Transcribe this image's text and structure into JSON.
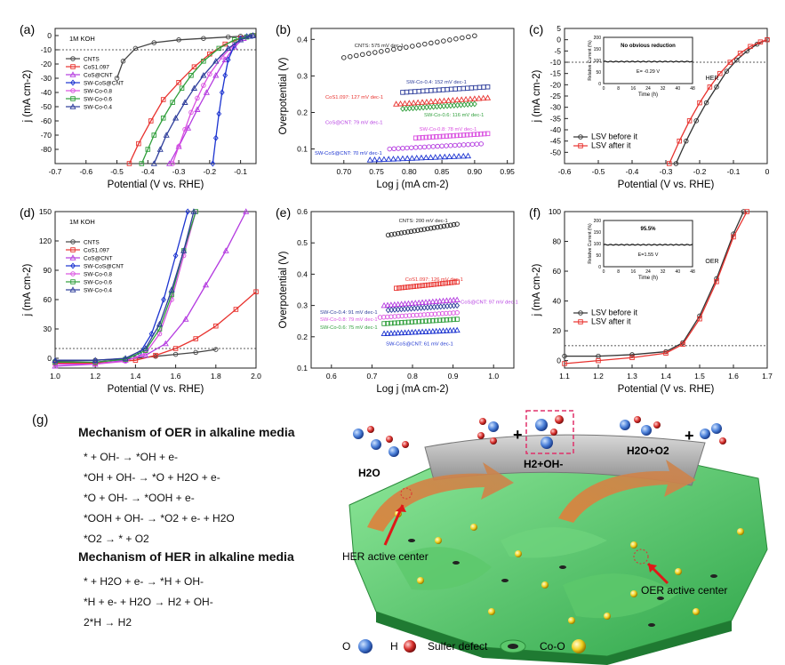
{
  "chart_data": [
    {
      "id": "a",
      "type": "line",
      "letter": "(a)",
      "annotation": "1M KOH",
      "xlabel": "Potential (V vs. RHE)",
      "ylabel": "j (mA cm-2)",
      "xlim": [
        -0.7,
        -0.05
      ],
      "ylim": [
        -90,
        5
      ],
      "xticks": [
        -0.7,
        -0.6,
        -0.5,
        -0.4,
        -0.3,
        -0.2,
        -0.1
      ],
      "yticks": [
        -80,
        -70,
        -60,
        -50,
        -40,
        -30,
        -20,
        -10,
        0
      ],
      "ref_line": -10,
      "legend": [
        "CNTS",
        "CoS1.097",
        "CoS@CNT",
        "SW-CoS@CNT",
        "SW-Co-0.8",
        "SW-Co-0.6",
        "SW-Co-0.4"
      ],
      "series": [
        {
          "name": "CNTS",
          "color": "#444444",
          "x": [
            -0.5,
            -0.48,
            -0.44,
            -0.38,
            -0.3,
            -0.22,
            -0.14,
            -0.1,
            -0.06
          ],
          "y": [
            -30,
            -18,
            -9,
            -5,
            -3,
            -2,
            -1,
            -0.5,
            0
          ]
        },
        {
          "name": "CoS1.097",
          "color": "#e8322e",
          "x": [
            -0.46,
            -0.43,
            -0.39,
            -0.35,
            -0.3,
            -0.25,
            -0.2,
            -0.15,
            -0.1,
            -0.06
          ],
          "y": [
            -90,
            -76,
            -60,
            -45,
            -33,
            -22,
            -13,
            -6,
            -2,
            0
          ]
        },
        {
          "name": "CoS@CNT",
          "color": "#b43be0",
          "x": [
            -0.33,
            -0.3,
            -0.27,
            -0.24,
            -0.21,
            -0.18,
            -0.15,
            -0.12,
            -0.09,
            -0.06
          ],
          "y": [
            -90,
            -78,
            -65,
            -52,
            -40,
            -28,
            -17,
            -8,
            -2,
            0
          ]
        },
        {
          "name": "SW-CoS@CNT",
          "color": "#1b33d0",
          "x": [
            -0.19,
            -0.18,
            -0.17,
            -0.16,
            -0.15,
            -0.14,
            -0.12,
            -0.1,
            -0.08,
            -0.06
          ],
          "y": [
            -90,
            -72,
            -55,
            -40,
            -28,
            -17,
            -7,
            -2,
            -0.5,
            0
          ]
        },
        {
          "name": "SW-Co-0.8",
          "color": "#d94fe0",
          "x": [
            -0.32,
            -0.3,
            -0.28,
            -0.26,
            -0.24,
            -0.22,
            -0.2,
            -0.16,
            -0.12,
            -0.08,
            -0.06
          ],
          "y": [
            -90,
            -78,
            -66,
            -54,
            -44,
            -35,
            -27,
            -15,
            -6,
            -1,
            0
          ]
        },
        {
          "name": "SW-Co-0.6",
          "color": "#2e9e3a",
          "x": [
            -0.42,
            -0.4,
            -0.38,
            -0.35,
            -0.32,
            -0.29,
            -0.26,
            -0.22,
            -0.17,
            -0.12,
            -0.08,
            -0.06
          ],
          "y": [
            -90,
            -80,
            -70,
            -58,
            -47,
            -37,
            -28,
            -18,
            -9,
            -3,
            -1,
            0
          ]
        },
        {
          "name": "SW-Co-0.4",
          "color": "#2c3c9a",
          "x": [
            -0.38,
            -0.36,
            -0.34,
            -0.31,
            -0.28,
            -0.25,
            -0.22,
            -0.18,
            -0.14,
            -0.1,
            -0.07,
            -0.06
          ],
          "y": [
            -90,
            -80,
            -70,
            -58,
            -47,
            -37,
            -28,
            -18,
            -9,
            -3,
            -0.5,
            0
          ]
        }
      ]
    },
    {
      "id": "b",
      "type": "scatter",
      "letter": "(b)",
      "xlabel": "Log j (mA cm-2)",
      "ylabel": "Overpotential (V)",
      "xlim": [
        0.65,
        0.96
      ],
      "ylim": [
        0.06,
        0.43
      ],
      "xticks": [
        0.7,
        0.75,
        0.8,
        0.85,
        0.9,
        0.95
      ],
      "yticks": [
        0.1,
        0.2,
        0.3,
        0.4
      ],
      "series": [
        {
          "name": "CNTS",
          "color": "#222222",
          "label": "CNTS: 575 mV dec-1",
          "x0": 0.7,
          "x1": 0.9,
          "y0": 0.35,
          "y1": 0.41
        },
        {
          "name": "SW-Co-0.4",
          "color": "#2c3c9a",
          "label": "SW-Co-0.4: 152 mV dec-1",
          "x0": 0.79,
          "x1": 0.92,
          "y0": 0.255,
          "y1": 0.27
        },
        {
          "name": "CoS1.097",
          "color": "#e8322e",
          "label": "CoS1.097: 127 mV dec-1",
          "x0": 0.78,
          "x1": 0.92,
          "y0": 0.223,
          "y1": 0.24
        },
        {
          "name": "SW-Co-0.6",
          "color": "#2e9e3a",
          "label": "SW-Co-0.6: 116 mV dec-1",
          "x0": 0.79,
          "x1": 0.9,
          "y0": 0.21,
          "y1": 0.223
        },
        {
          "name": "CoS@CNT",
          "color": "#b43be0",
          "label": "CoS@CNT: 79 mV dec-1",
          "x0": 0.77,
          "x1": 0.91,
          "y0": 0.1,
          "y1": 0.114
        },
        {
          "name": "SW-Co-0.8",
          "color": "#d94fe0",
          "label": "SW-Co-0.8: 78 mV dec-1",
          "x0": 0.81,
          "x1": 0.92,
          "y0": 0.13,
          "y1": 0.142
        },
        {
          "name": "SW-CoS@CNT",
          "color": "#1b33d0",
          "label": "SW-CoS@CNT: 70 mV dec-1",
          "x0": 0.74,
          "x1": 0.89,
          "y0": 0.07,
          "y1": 0.081
        }
      ]
    },
    {
      "id": "c",
      "type": "line",
      "letter": "(c)",
      "xlabel": "Potential (V vs. RHE)",
      "ylabel": "j (mA cm-2)",
      "xlim": [
        -0.6,
        0.0
      ],
      "ylim": [
        -55,
        5
      ],
      "xticks": [
        -0.6,
        -0.5,
        -0.4,
        -0.3,
        -0.2,
        -0.1,
        0.0
      ],
      "yticks": [
        -50,
        -45,
        -40,
        -35,
        -30,
        -25,
        -20,
        -15,
        -10,
        -5,
        0,
        5
      ],
      "ref_line": -10,
      "legend": [
        "LSV before it",
        "LSV after it"
      ],
      "series": [
        {
          "name": "LSV before it",
          "color": "#333333",
          "x": [
            -0.27,
            -0.24,
            -0.21,
            -0.18,
            -0.15,
            -0.12,
            -0.09,
            -0.06,
            -0.03,
            0.0
          ],
          "y": [
            -55,
            -45,
            -36,
            -28,
            -21,
            -14,
            -9,
            -5,
            -2,
            0
          ]
        },
        {
          "name": "LSV after it",
          "color": "#e8322e",
          "x": [
            -0.29,
            -0.26,
            -0.23,
            -0.2,
            -0.17,
            -0.14,
            -0.11,
            -0.08,
            -0.05,
            -0.02,
            0.0
          ],
          "y": [
            -55,
            -45,
            -36,
            -28,
            -21,
            -15,
            -10,
            -6,
            -3,
            -1,
            0
          ]
        }
      ],
      "inset": {
        "note": "No obvious reduction",
        "value": "E= -0.29 V",
        "tag": "HER",
        "ylabel": "Relative Current (%)",
        "xlabel": "Time (h)",
        "xticks": [
          0,
          8,
          16,
          24,
          32,
          40,
          48
        ],
        "yticks": [
          0,
          50,
          100,
          150,
          200
        ],
        "level": 95
      }
    },
    {
      "id": "d",
      "type": "line",
      "letter": "(d)",
      "annotation": "1M KOH",
      "xlabel": "Potential (V vs. RHE)",
      "ylabel": "j (mA cm-2)",
      "xlim": [
        1.0,
        2.0
      ],
      "ylim": [
        -10,
        150
      ],
      "xticks": [
        1.0,
        1.2,
        1.4,
        1.6,
        1.8,
        2.0
      ],
      "yticks": [
        0,
        30,
        60,
        90,
        120,
        150
      ],
      "ref_line": 10,
      "legend": [
        "CNTS",
        "CoS1.097",
        "CoS@CNT",
        "SW-CoS@CNT",
        "SW-Co-0.8",
        "SW-Co-0.6",
        "SW-Co-0.4"
      ],
      "series": [
        {
          "name": "CNTS",
          "color": "#444444",
          "x": [
            1.0,
            1.2,
            1.4,
            1.5,
            1.6,
            1.7,
            1.8
          ],
          "y": [
            -3,
            -2,
            0,
            2,
            4,
            6,
            9
          ]
        },
        {
          "name": "CoS1.097",
          "color": "#e8322e",
          "x": [
            1.0,
            1.2,
            1.4,
            1.5,
            1.6,
            1.7,
            1.8,
            1.9,
            2.0
          ],
          "y": [
            -5,
            -5,
            -2,
            3,
            10,
            20,
            33,
            50,
            68
          ]
        },
        {
          "name": "CoS@CNT",
          "color": "#b43be0",
          "x": [
            1.0,
            1.2,
            1.35,
            1.45,
            1.55,
            1.65,
            1.75,
            1.85,
            1.95
          ],
          "y": [
            -8,
            -6,
            -2,
            3,
            15,
            40,
            75,
            110,
            150
          ]
        },
        {
          "name": "SW-CoS@CNT",
          "color": "#1b33d0",
          "x": [
            1.0,
            1.2,
            1.35,
            1.42,
            1.48,
            1.54,
            1.6,
            1.66
          ],
          "y": [
            -4,
            -4,
            -1,
            5,
            25,
            60,
            105,
            150
          ]
        },
        {
          "name": "SW-Co-0.8",
          "color": "#d94fe0",
          "x": [
            1.0,
            1.2,
            1.35,
            1.45,
            1.52,
            1.58,
            1.64,
            1.7
          ],
          "y": [
            -6,
            -6,
            -3,
            5,
            25,
            60,
            105,
            150
          ]
        },
        {
          "name": "SW-Co-0.6",
          "color": "#2e9e3a",
          "x": [
            1.0,
            1.2,
            1.35,
            1.45,
            1.52,
            1.58,
            1.64,
            1.7
          ],
          "y": [
            -4,
            -4,
            -1,
            8,
            30,
            65,
            110,
            150
          ]
        },
        {
          "name": "SW-Co-0.4",
          "color": "#2c3c9a",
          "x": [
            1.0,
            1.2,
            1.35,
            1.45,
            1.52,
            1.58,
            1.64,
            1.69
          ],
          "y": [
            -2,
            -2,
            0,
            10,
            35,
            70,
            110,
            150
          ]
        }
      ]
    },
    {
      "id": "e",
      "type": "scatter",
      "letter": "(e)",
      "xlabel": "Log j (mA cm-2)",
      "ylabel": "Overpotential (V)",
      "xlim": [
        0.55,
        1.05
      ],
      "ylim": [
        0.1,
        0.6
      ],
      "xticks": [
        0.6,
        0.7,
        0.8,
        0.9,
        1.0
      ],
      "yticks": [
        0.1,
        0.2,
        0.3,
        0.4,
        0.5,
        0.6
      ],
      "series": [
        {
          "name": "CNTS",
          "color": "#222222",
          "label": "CNTS: 200 mV dec-1",
          "x0": 0.74,
          "x1": 0.91,
          "y0": 0.525,
          "y1": 0.56
        },
        {
          "name": "CoS1.097",
          "color": "#e8322e",
          "label": "CoS1.097: 126 mV dec-1",
          "x0": 0.76,
          "x1": 0.91,
          "y0": 0.355,
          "y1": 0.375
        },
        {
          "name": "CoS@CNT",
          "color": "#b43be0",
          "label": "CoS@CNT: 97 mV dec-1",
          "x0": 0.73,
          "x1": 0.91,
          "y0": 0.3,
          "y1": 0.318
        },
        {
          "name": "SW-Co-0.4",
          "color": "#2c3c9a",
          "label": "SW-Co-0.4: 91 mV dec-1",
          "x0": 0.74,
          "x1": 0.91,
          "y0": 0.285,
          "y1": 0.3
        },
        {
          "name": "SW-Co-0.8",
          "color": "#d94fe0",
          "label": "SW-Co-0.8: 79 mV dec-1",
          "x0": 0.72,
          "x1": 0.91,
          "y0": 0.262,
          "y1": 0.277
        },
        {
          "name": "SW-Co-0.6",
          "color": "#2e9e3a",
          "label": "SW-Co-0.6: 75 mV dec-1",
          "x0": 0.73,
          "x1": 0.91,
          "y0": 0.242,
          "y1": 0.256
        },
        {
          "name": "SW-CoS@CNT",
          "color": "#1b33d0",
          "label": "SW-CoS@CNT: 61 mV dec-1",
          "x0": 0.73,
          "x1": 0.91,
          "y0": 0.21,
          "y1": 0.221
        }
      ]
    },
    {
      "id": "f",
      "type": "line",
      "letter": "(f)",
      "xlabel": "Potential (V vs. RHE)",
      "ylabel": "j (mA cm-2)",
      "xlim": [
        1.1,
        1.7
      ],
      "ylim": [
        -5,
        100
      ],
      "xticks": [
        1.1,
        1.2,
        1.3,
        1.4,
        1.5,
        1.6,
        1.7
      ],
      "yticks": [
        0,
        20,
        40,
        60,
        80,
        100
      ],
      "ref_line": 10,
      "legend": [
        "LSV before it",
        "LSV after it"
      ],
      "series": [
        {
          "name": "LSV before it",
          "color": "#333333",
          "x": [
            1.1,
            1.2,
            1.3,
            1.4,
            1.45,
            1.5,
            1.55,
            1.6,
            1.63
          ],
          "y": [
            3,
            3,
            4,
            6,
            12,
            30,
            55,
            85,
            100
          ]
        },
        {
          "name": "LSV after it",
          "color": "#e8322e",
          "x": [
            1.1,
            1.2,
            1.3,
            1.4,
            1.45,
            1.5,
            1.55,
            1.6,
            1.64
          ],
          "y": [
            -2,
            0,
            2,
            5,
            11,
            28,
            53,
            83,
            100
          ]
        }
      ],
      "inset": {
        "note": "95.5%",
        "value": "E=1.55 V",
        "tag": "OER",
        "ylabel": "Relative Current (%)",
        "xlabel": "Time (h)",
        "xticks": [
          0,
          8,
          16,
          24,
          32,
          40,
          48
        ],
        "yticks": [
          0,
          50,
          100,
          150,
          200
        ],
        "level": 95
      }
    }
  ],
  "mechanism": {
    "letter": "(g)",
    "oer_title": "Mechanism of OER in alkaline media",
    "oer_steps": [
      "* + OH- → *OH + e-",
      "*OH + OH- → *O + H2O + e-",
      "*O + OH- → *OOH + e-",
      "*OOH + OH- → *O2 + e- + H2O",
      "*O2 → * + O2"
    ],
    "her_title": "Mechanism of HER in alkaline media",
    "her_steps": [
      "* + H2O + e- → *H + OH-",
      "*H + e- + H2O → H2 + OH-",
      "2*H → H2"
    ]
  },
  "illustration": {
    "h2o": "H2O",
    "h_oh": "H2+OH-",
    "h2o_o2": "H2O+O2",
    "plus": "+",
    "her_center": "HER active center",
    "oer_center": "OER active center",
    "legend": {
      "o": "O",
      "h": "H",
      "defect": "Sulfer defect",
      "coo": "Co-O"
    }
  }
}
